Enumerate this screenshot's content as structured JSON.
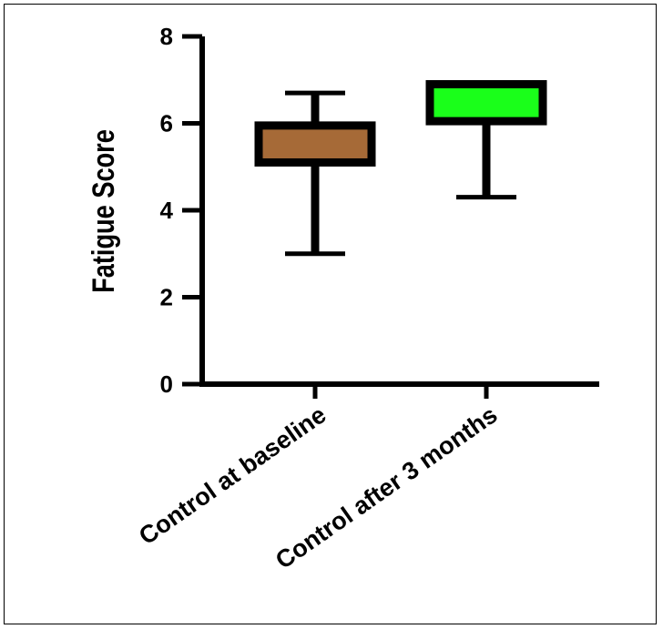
{
  "chart_data": {
    "type": "box",
    "title": "",
    "xlabel": "",
    "ylabel": "Fatigue Score",
    "ylim": [
      0,
      8
    ],
    "yticks": [
      0,
      2,
      4,
      6,
      8
    ],
    "grid": false,
    "categories": [
      "Control at baseline",
      "Control after 3 months"
    ],
    "boxes": [
      {
        "category": "Control at baseline",
        "min": 3.0,
        "q1": 5.1,
        "median": 5.1,
        "q3": 5.95,
        "max": 6.7,
        "color": "#A66A37"
      },
      {
        "category": "Control after 3 months",
        "min": 4.3,
        "q1": 6.05,
        "median": 6.05,
        "q3": 6.9,
        "max": 6.9,
        "color": "#1AFF1A"
      }
    ]
  }
}
